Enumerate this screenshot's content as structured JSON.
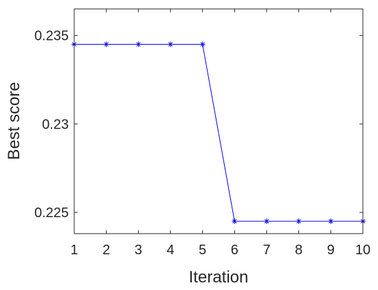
{
  "chart_data": {
    "type": "line",
    "xlabel": "Iteration",
    "ylabel": "Best score",
    "xlim": [
      1,
      10
    ],
    "ylim": [
      0.2238,
      0.2365
    ],
    "xticks": [
      "1",
      "2",
      "3",
      "4",
      "5",
      "6",
      "7",
      "8",
      "9",
      "10"
    ],
    "yticks": [
      "0.225",
      "0.23",
      "0.235"
    ],
    "xtick_values": [
      1,
      2,
      3,
      4,
      5,
      6,
      7,
      8,
      9,
      10
    ],
    "ytick_values": [
      0.225,
      0.23,
      0.235
    ],
    "grid": false,
    "legend": false,
    "series": [
      {
        "color": "#0000ff",
        "marker": "asterisk",
        "x": [
          1,
          2,
          3,
          4,
          5,
          6,
          7,
          8,
          9,
          10
        ],
        "values": [
          0.2345,
          0.2345,
          0.2345,
          0.2345,
          0.2345,
          0.2245,
          0.2245,
          0.2245,
          0.2245,
          0.2245
        ]
      }
    ]
  }
}
